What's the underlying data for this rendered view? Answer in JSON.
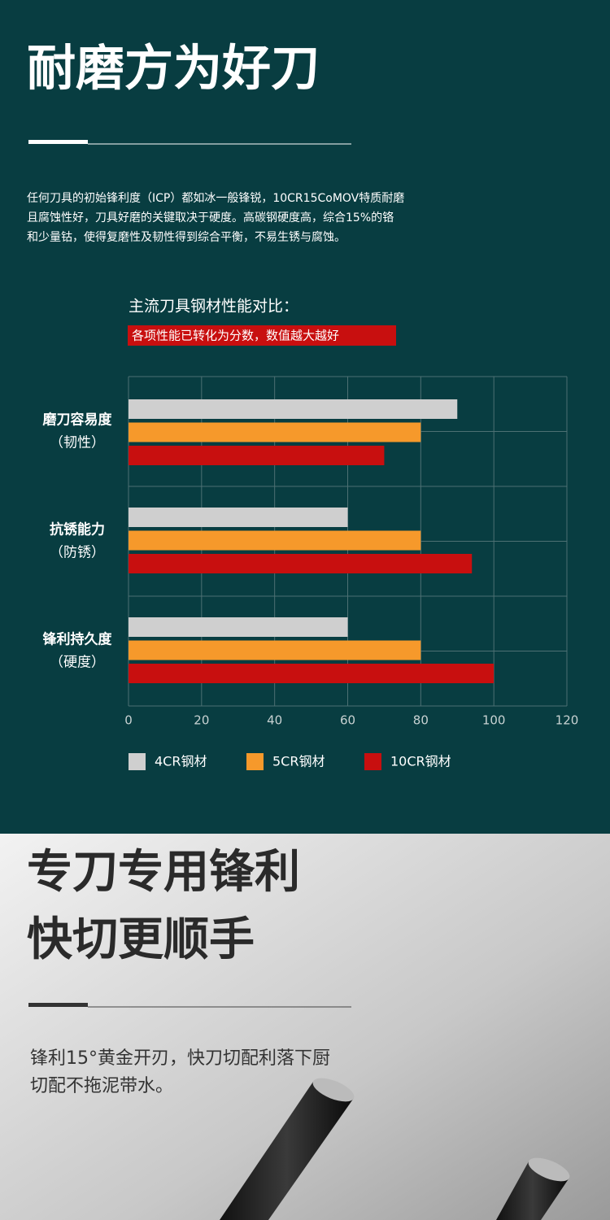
{
  "section1": {
    "title": "耐磨方为好刀",
    "description": [
      "任何刀具的初始锋利度（ICP）都如冰一般锋锐，10CR15CoMOV特质耐磨",
      "且腐蚀性好，刀具好磨的关键取决于硬度。高碳钢硬度高，综合15%的铬",
      "和少量钴，使得复磨性及韧性得到综合平衡，不易生锈与腐蚀。"
    ]
  },
  "chart_data": {
    "type": "hbar",
    "title": "主流刀具钢材性能对比：",
    "subtitle": "各项性能已转化为分数，数值越大越好",
    "categories": [
      "磨刀容易度",
      "抗锈能力",
      "锋利持久度"
    ],
    "category_notes": [
      "（韧性）",
      "（防锈）",
      "（硬度）"
    ],
    "series": [
      {
        "name": "4CR钢材",
        "color": "#cfcfcf",
        "values": [
          90,
          60,
          60
        ]
      },
      {
        "name": "5CR钢材",
        "color": "#f6992b",
        "values": [
          80,
          80,
          80
        ]
      },
      {
        "name": "10CR钢材",
        "color": "#c80f0f",
        "values": [
          70,
          94,
          100
        ]
      }
    ],
    "xlim": [
      0,
      120
    ],
    "xticks": [
      0,
      20,
      40,
      60,
      80,
      100,
      120
    ],
    "grid": true
  },
  "section2": {
    "title": [
      "专刀专用锋利",
      "快切更顺手"
    ],
    "description": [
      "锋利15°黄金开刃，快刀切配利落下厨",
      "切配不拖泥带水。"
    ]
  }
}
